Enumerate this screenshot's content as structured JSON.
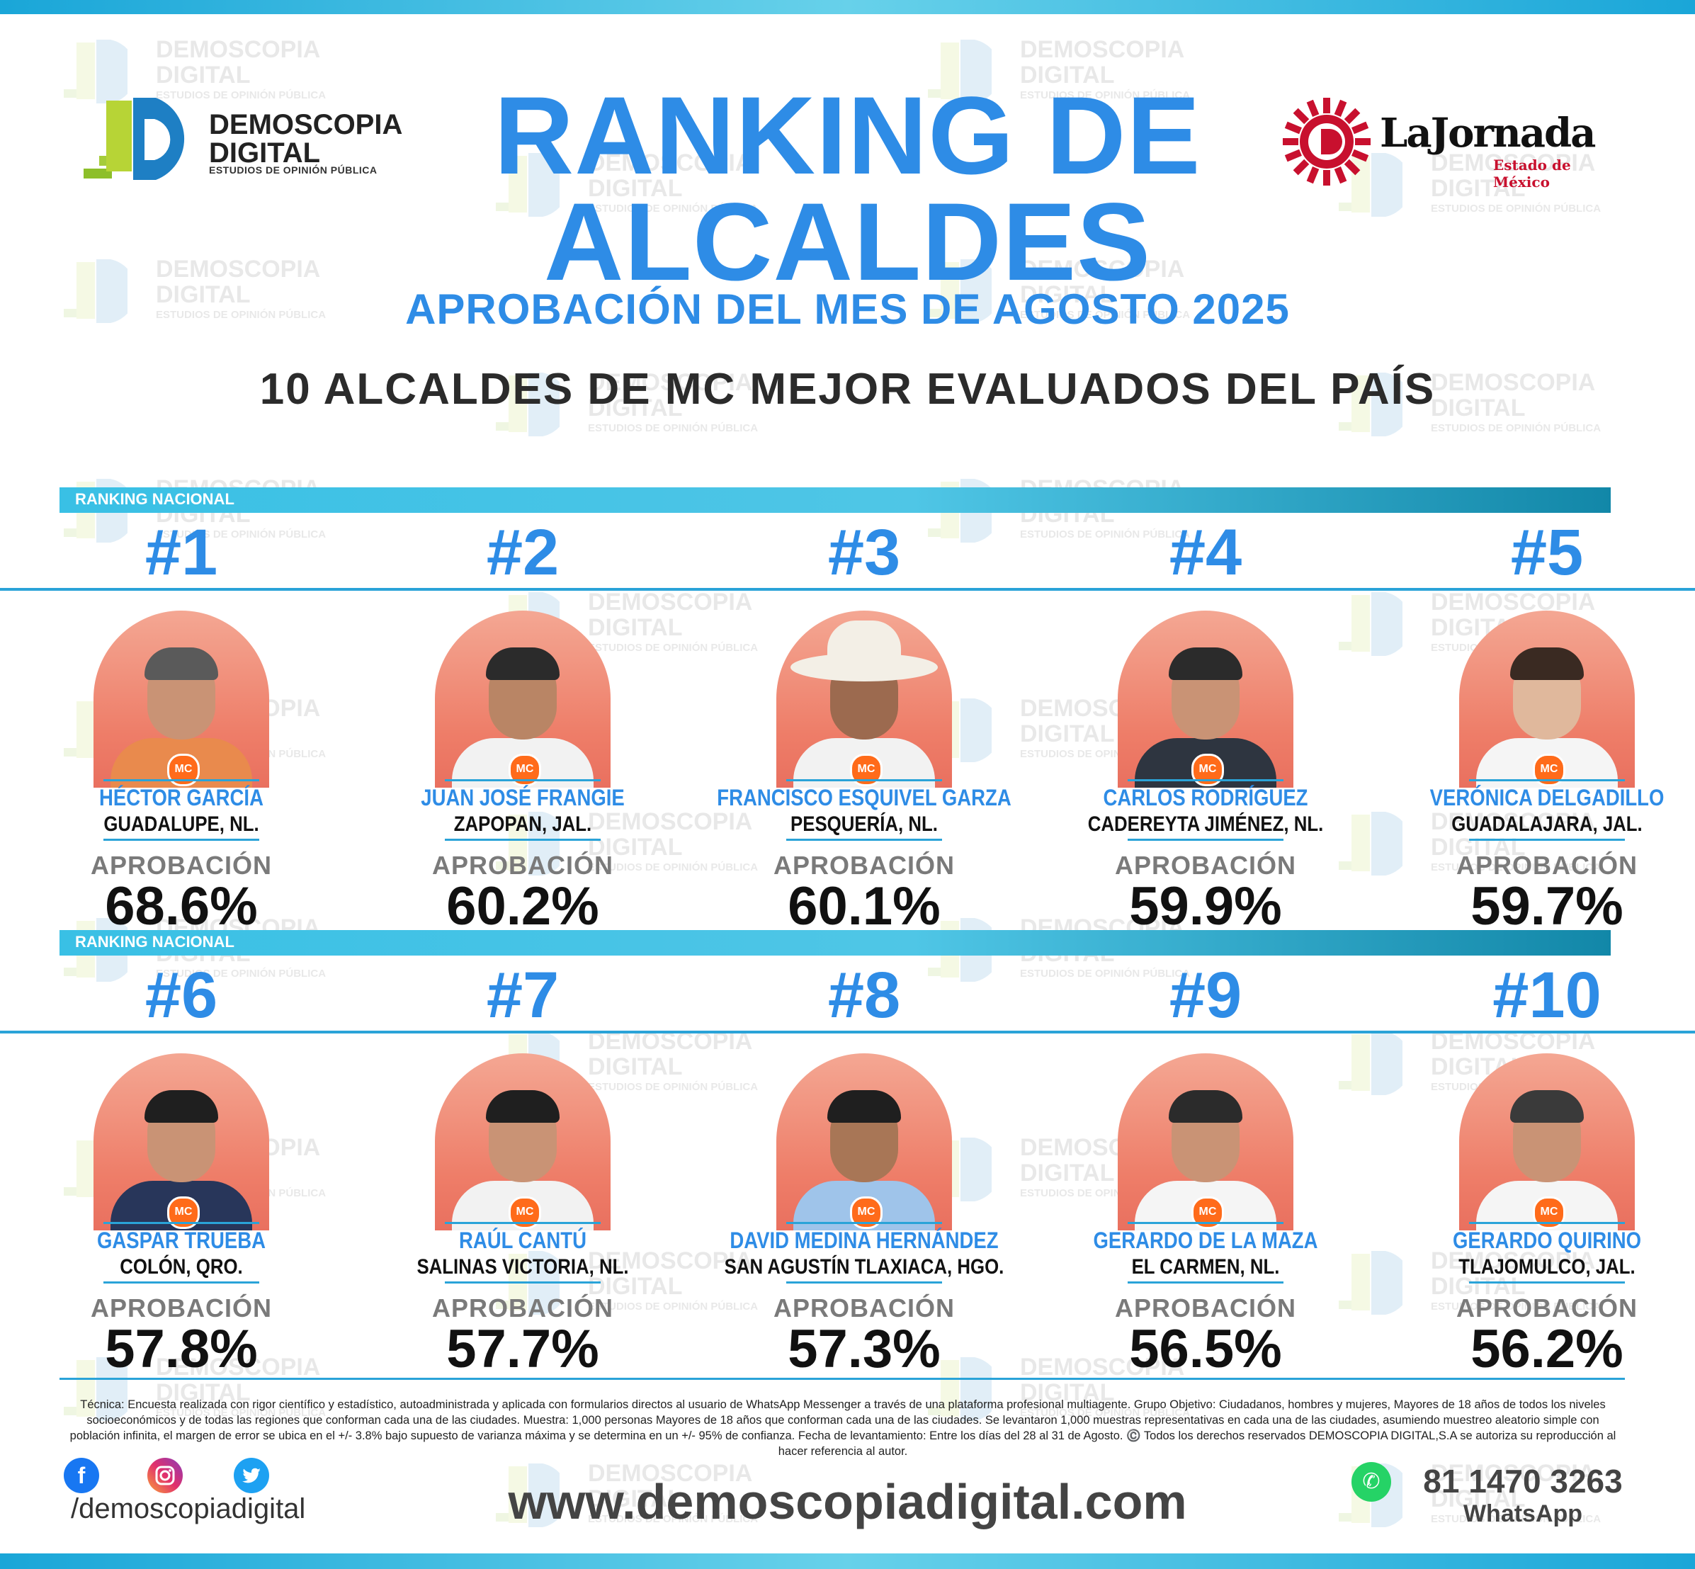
{
  "watermark": {
    "line1": "DEMOSCOPIA",
    "line2": "DIGITAL",
    "line3": "ESTUDIOS DE OPINIÓN PÚBLICA"
  },
  "logo_demoscopia": {
    "name_line1": "DEMOSCOPIA",
    "name_line2": "DIGITAL",
    "sub": "ESTUDIOS DE OPINIÓN PÚBLICA"
  },
  "logo_jornada": {
    "name": "LaJornada",
    "sub": "Estado de México"
  },
  "header": {
    "title_line1": "RANKING DE",
    "title_line2": "ALCALDES",
    "subtitle": "APROBACIÓN DEL MES DE AGOSTO 2025",
    "heading": "10 ALCALDES DE MC MEJOR EVALUADOS DEL PAÍS"
  },
  "section_label": "RANKING NACIONAL",
  "approval_label": "APROBACIÓN",
  "mayors": [
    {
      "rank": "#1",
      "name": "HÉCTOR GARCÍA",
      "city": "GUADALUPE, NL.",
      "approval": "68.6%"
    },
    {
      "rank": "#2",
      "name": "JUAN JOSÉ FRANGIE",
      "city": "ZAPOPAN, JAL.",
      "approval": "60.2%"
    },
    {
      "rank": "#3",
      "name": "FRANCISCO ESQUIVEL GARZA",
      "city": "PESQUERÍA, NL.",
      "approval": "60.1%"
    },
    {
      "rank": "#4",
      "name": "CARLOS RODRÍGUEZ",
      "city": "CADEREYTA JIMÉNEZ, NL.",
      "approval": "59.9%"
    },
    {
      "rank": "#5",
      "name": "VERÓNICA DELGADILLO",
      "city": "GUADALAJARA, JAL.",
      "approval": "59.7%"
    },
    {
      "rank": "#6",
      "name": "GASPAR TRUEBA",
      "city": "COLÓN, QRO.",
      "approval": "57.8%"
    },
    {
      "rank": "#7",
      "name": "RAÚL CANTÚ",
      "city": "SALINAS VICTORIA, NL.",
      "approval": "57.7%"
    },
    {
      "rank": "#8",
      "name": "DAVID MEDINA HERNÁNDEZ",
      "city": "SAN AGUSTÍN TLAXIACA, HGO.",
      "approval": "57.3%"
    },
    {
      "rank": "#9",
      "name": "GERARDO DE LA MAZA",
      "city": "EL CARMEN, NL.",
      "approval": "56.5%"
    },
    {
      "rank": "#10",
      "name": "GERARDO QUIRINO",
      "city": "TLAJOMULCO, JAL.",
      "approval": "56.2%"
    }
  ],
  "footer": {
    "technical": "Técnica: Encuesta realizada con rigor científico y estadístico, autoadministrada y aplicada con formularios directos al usuario de WhatsApp Messenger a través de una plataforma profesional multiagente. Grupo Objetivo: Ciudadanos, hombres y mujeres, Mayores de 18 años de todos los niveles socioeconómicos y de todas las regiones que conforman cada una de las ciudades. Muestra: 1,000 personas Mayores de 18 años que conforman cada una de las ciudades. Se levantaron 1,000 muestras representativas en cada una de las ciudades, asumiendo muestreo aleatorio simple con población infinita, el margen de error se ubica en el +/- 3.8% bajo supuesto de varianza máxima y se determina en un +/- 95% de confianza. Fecha de levantamiento: Entre los días del 28 al 31 de Agosto. ©️ Todos los derechos reservados DEMOSCOPIA DIGITAL,S.A se autoriza su reproducción al hacer referencia al autor.",
    "handle": "/demoscopiadigital",
    "website": "www.demoscopiadigital.com",
    "phone": "81 1470 3263",
    "whatsapp_label": "WhatsApp"
  },
  "icons": {
    "facebook": "facebook-icon",
    "instagram": "instagram-icon",
    "twitter": "twitter-icon",
    "whatsapp": "whatsapp-icon"
  },
  "colors": {
    "title_blue": "#2e8ce6",
    "bar_cyan": "#39c0e5",
    "mc_orange": "#ff6b1a",
    "photo_bg": "#f08a73"
  }
}
